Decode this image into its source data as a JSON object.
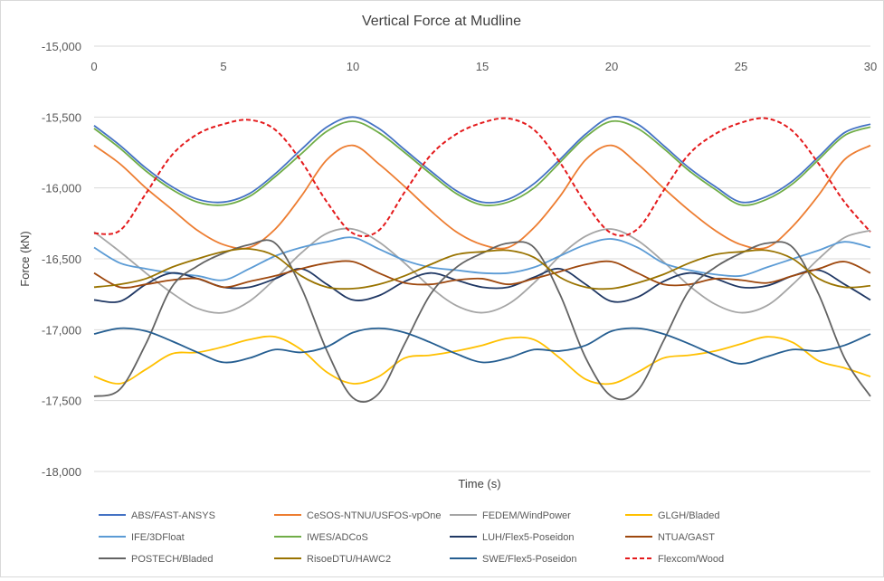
{
  "chart_data": {
    "type": "line",
    "title": "Vertical Force at Mudline",
    "xlabel": "Time (s)",
    "ylabel": "Force (kN)",
    "xlim": [
      0,
      30
    ],
    "ylim": [
      -18000,
      -15000
    ],
    "x_ticks": [
      0,
      5,
      10,
      15,
      20,
      25,
      30
    ],
    "x_tick_labels": [
      "0",
      "5",
      "10",
      "15",
      "20",
      "25",
      "30"
    ],
    "y_ticks": [
      -18000,
      -17500,
      -17000,
      -16500,
      -16000,
      -15500,
      -15000
    ],
    "y_tick_labels": [
      "-18,000",
      "-17,500",
      "-17,000",
      "-16,500",
      "-16,000",
      "-15,500",
      "-15,000"
    ],
    "grid": "horizontal",
    "legend_position": "bottom",
    "x": [
      0,
      1,
      2,
      3,
      4,
      5,
      6,
      7,
      8,
      9,
      10,
      11,
      12,
      13,
      14,
      15,
      16,
      17,
      18,
      19,
      20,
      21,
      22,
      23,
      24,
      25,
      26,
      27,
      28,
      29,
      30
    ],
    "series": [
      {
        "name": "ABS/FAST-ANSYS",
        "color": "#4472c4",
        "dash": "",
        "values": [
          -15560,
          -15700,
          -15860,
          -15990,
          -16080,
          -16100,
          -16040,
          -15900,
          -15730,
          -15570,
          -15500,
          -15580,
          -15730,
          -15880,
          -16020,
          -16100,
          -16080,
          -15970,
          -15800,
          -15620,
          -15500,
          -15550,
          -15700,
          -15860,
          -15990,
          -16100,
          -16060,
          -15950,
          -15780,
          -15610,
          -15550
        ]
      },
      {
        "name": "CeSOS-NTNU/USFOS-vpOne",
        "color": "#ed7d31",
        "dash": "",
        "values": [
          -15700,
          -15830,
          -16000,
          -16150,
          -16300,
          -16400,
          -16420,
          -16290,
          -16060,
          -15800,
          -15700,
          -15830,
          -15990,
          -16160,
          -16310,
          -16400,
          -16420,
          -16280,
          -16060,
          -15800,
          -15700,
          -15830,
          -16000,
          -16160,
          -16300,
          -16400,
          -16420,
          -16270,
          -16050,
          -15800,
          -15700
        ]
      },
      {
        "name": "FEDEM/WindPower",
        "color": "#a5a5a5",
        "dash": "",
        "values": [
          -16310,
          -16450,
          -16600,
          -16740,
          -16850,
          -16880,
          -16800,
          -16640,
          -16460,
          -16320,
          -16290,
          -16380,
          -16530,
          -16700,
          -16830,
          -16880,
          -16820,
          -16670,
          -16480,
          -16340,
          -16290,
          -16370,
          -16520,
          -16690,
          -16820,
          -16880,
          -16830,
          -16680,
          -16500,
          -16350,
          -16300
        ]
      },
      {
        "name": "GLGH/Bladed",
        "color": "#ffc000",
        "dash": "",
        "values": [
          -17330,
          -17380,
          -17280,
          -17170,
          -17160,
          -17120,
          -17070,
          -17050,
          -17140,
          -17300,
          -17380,
          -17330,
          -17200,
          -17180,
          -17150,
          -17110,
          -17060,
          -17070,
          -17200,
          -17350,
          -17380,
          -17300,
          -17200,
          -17180,
          -17150,
          -17100,
          -17050,
          -17090,
          -17220,
          -17270,
          -17330
        ]
      },
      {
        "name": "IFE/3DFloat",
        "color": "#5b9bd5",
        "dash": "",
        "values": [
          -16420,
          -16530,
          -16570,
          -16600,
          -16620,
          -16650,
          -16570,
          -16480,
          -16420,
          -16380,
          -16350,
          -16430,
          -16510,
          -16560,
          -16580,
          -16600,
          -16600,
          -16560,
          -16480,
          -16400,
          -16360,
          -16420,
          -16530,
          -16580,
          -16610,
          -16620,
          -16560,
          -16500,
          -16440,
          -16380,
          -16420
        ]
      },
      {
        "name": "IWES/ADCoS",
        "color": "#70ad47",
        "dash": "",
        "values": [
          -15580,
          -15720,
          -15880,
          -16010,
          -16100,
          -16120,
          -16060,
          -15920,
          -15760,
          -15600,
          -15530,
          -15610,
          -15750,
          -15900,
          -16040,
          -16120,
          -16100,
          -16000,
          -15820,
          -15640,
          -15530,
          -15580,
          -15720,
          -15880,
          -16010,
          -16120,
          -16080,
          -15970,
          -15800,
          -15630,
          -15570
        ]
      },
      {
        "name": "LUH/Flex5-Poseidon",
        "color": "#203864",
        "dash": "",
        "values": [
          -16790,
          -16800,
          -16680,
          -16600,
          -16640,
          -16700,
          -16700,
          -16640,
          -16570,
          -16680,
          -16790,
          -16760,
          -16660,
          -16600,
          -16650,
          -16700,
          -16700,
          -16630,
          -16570,
          -16680,
          -16800,
          -16770,
          -16660,
          -16600,
          -16640,
          -16700,
          -16690,
          -16620,
          -16580,
          -16680,
          -16790
        ]
      },
      {
        "name": "NTUA/GAST",
        "color": "#9e480e",
        "dash": "",
        "values": [
          -16600,
          -16700,
          -16680,
          -16650,
          -16640,
          -16700,
          -16660,
          -16620,
          -16570,
          -16530,
          -16520,
          -16600,
          -16670,
          -16680,
          -16650,
          -16640,
          -16680,
          -16640,
          -16590,
          -16540,
          -16520,
          -16600,
          -16680,
          -16680,
          -16640,
          -16650,
          -16670,
          -16620,
          -16570,
          -16520,
          -16600
        ]
      },
      {
        "name": "POSTECH/Bladed",
        "color": "#636363",
        "dash": "",
        "values": [
          -17470,
          -17420,
          -17100,
          -16700,
          -16550,
          -16460,
          -16400,
          -16390,
          -16700,
          -17150,
          -17480,
          -17450,
          -17100,
          -16750,
          -16560,
          -16460,
          -16390,
          -16420,
          -16750,
          -17200,
          -17470,
          -17430,
          -17080,
          -16720,
          -16560,
          -16460,
          -16390,
          -16420,
          -16750,
          -17200,
          -17470
        ]
      },
      {
        "name": "RisoeDTU/HAWC2",
        "color": "#997300",
        "dash": "",
        "values": [
          -16700,
          -16680,
          -16640,
          -16560,
          -16500,
          -16450,
          -16430,
          -16480,
          -16620,
          -16700,
          -16710,
          -16680,
          -16620,
          -16540,
          -16470,
          -16450,
          -16440,
          -16490,
          -16630,
          -16700,
          -16710,
          -16670,
          -16610,
          -16530,
          -16470,
          -16450,
          -16440,
          -16500,
          -16640,
          -16700,
          -16690
        ]
      },
      {
        "name": "SWE/Flex5-Poseidon",
        "color": "#255e91",
        "dash": "",
        "values": [
          -17030,
          -16990,
          -17010,
          -17080,
          -17160,
          -17230,
          -17200,
          -17140,
          -17160,
          -17120,
          -17020,
          -16990,
          -17020,
          -17090,
          -17170,
          -17230,
          -17200,
          -17140,
          -17150,
          -17110,
          -17010,
          -16990,
          -17030,
          -17100,
          -17180,
          -17240,
          -17190,
          -17140,
          -17150,
          -17110,
          -17030
        ]
      },
      {
        "name": "Flexcom/Wood",
        "color": "#e41a1c",
        "dash": "5,3",
        "values": [
          -16320,
          -16300,
          -16040,
          -15770,
          -15620,
          -15550,
          -15520,
          -15590,
          -15810,
          -16100,
          -16320,
          -16300,
          -16030,
          -15770,
          -15620,
          -15540,
          -15510,
          -15590,
          -15820,
          -16110,
          -16320,
          -16290,
          -16020,
          -15760,
          -15620,
          -15540,
          -15510,
          -15600,
          -15830,
          -16100,
          -16310
        ]
      }
    ]
  }
}
